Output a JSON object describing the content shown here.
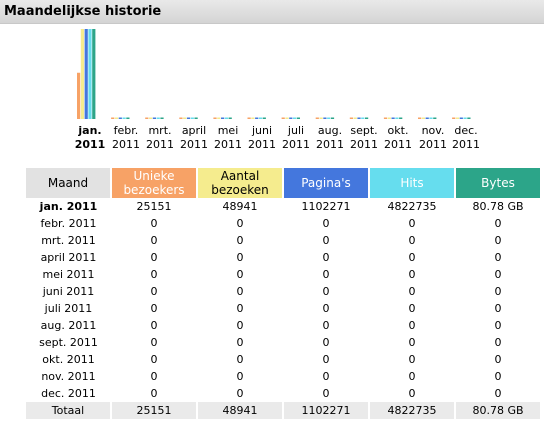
{
  "section_title": "Maandelijkse historie",
  "chart_months": [
    {
      "label1": "jan.",
      "label2": "2011",
      "bold": true
    },
    {
      "label1": "febr.",
      "label2": "2011",
      "bold": false
    },
    {
      "label1": "mrt.",
      "label2": "2011",
      "bold": false
    },
    {
      "label1": "april",
      "label2": "2011",
      "bold": false
    },
    {
      "label1": "mei",
      "label2": "2011",
      "bold": false
    },
    {
      "label1": "juni",
      "label2": "2011",
      "bold": false
    },
    {
      "label1": "juli",
      "label2": "2011",
      "bold": false
    },
    {
      "label1": "aug.",
      "label2": "2011",
      "bold": false
    },
    {
      "label1": "sept.",
      "label2": "2011",
      "bold": false
    },
    {
      "label1": "okt.",
      "label2": "2011",
      "bold": false
    },
    {
      "label1": "nov.",
      "label2": "2011",
      "bold": false
    },
    {
      "label1": "dec.",
      "label2": "2011",
      "bold": false
    }
  ],
  "colors": {
    "unique": "#f7a266",
    "visits": "#f5ec8e",
    "pages": "#4477dd",
    "hits": "#66ddee",
    "bytes": "#2ca589"
  },
  "chart_data": {
    "type": "bar",
    "categories": [
      "jan. 2011",
      "febr. 2011",
      "mrt. 2011",
      "april 2011",
      "mei 2011",
      "juni 2011",
      "juli 2011",
      "aug. 2011",
      "sept. 2011",
      "okt. 2011",
      "nov. 2011",
      "dec. 2011"
    ],
    "series": [
      {
        "name": "Unieke bezoekers",
        "values": [
          25151,
          0,
          0,
          0,
          0,
          0,
          0,
          0,
          0,
          0,
          0,
          0
        ]
      },
      {
        "name": "Aantal bezoeken",
        "values": [
          48941,
          0,
          0,
          0,
          0,
          0,
          0,
          0,
          0,
          0,
          0,
          0
        ]
      },
      {
        "name": "Pagina's",
        "values": [
          1102271,
          0,
          0,
          0,
          0,
          0,
          0,
          0,
          0,
          0,
          0,
          0
        ]
      },
      {
        "name": "Hits",
        "values": [
          4822735,
          0,
          0,
          0,
          0,
          0,
          0,
          0,
          0,
          0,
          0,
          0
        ]
      },
      {
        "name": "Bytes",
        "values": [
          80.78,
          0,
          0,
          0,
          0,
          0,
          0,
          0,
          0,
          0,
          0,
          0
        ]
      }
    ]
  },
  "table": {
    "headers": [
      "Maand",
      "Unieke bezoekers",
      "Aantal bezoeken",
      "Pagina's",
      "Hits",
      "Bytes"
    ],
    "header_lines": {
      "maand": "Maand",
      "unique1": "Unieke",
      "unique2": "bezoekers",
      "visits1": "Aantal",
      "visits2": "bezoeken",
      "pages": "Pagina's",
      "hits": "Hits",
      "bytes": "Bytes"
    },
    "rows": [
      [
        "jan. 2011",
        "25151",
        "48941",
        "1102271",
        "4822735",
        "80.78 GB"
      ],
      [
        "febr. 2011",
        "0",
        "0",
        "0",
        "0",
        "0"
      ],
      [
        "mrt. 2011",
        "0",
        "0",
        "0",
        "0",
        "0"
      ],
      [
        "april 2011",
        "0",
        "0",
        "0",
        "0",
        "0"
      ],
      [
        "mei 2011",
        "0",
        "0",
        "0",
        "0",
        "0"
      ],
      [
        "juni 2011",
        "0",
        "0",
        "0",
        "0",
        "0"
      ],
      [
        "juli 2011",
        "0",
        "0",
        "0",
        "0",
        "0"
      ],
      [
        "aug. 2011",
        "0",
        "0",
        "0",
        "0",
        "0"
      ],
      [
        "sept. 2011",
        "0",
        "0",
        "0",
        "0",
        "0"
      ],
      [
        "okt. 2011",
        "0",
        "0",
        "0",
        "0",
        "0"
      ],
      [
        "nov. 2011",
        "0",
        "0",
        "0",
        "0",
        "0"
      ],
      [
        "dec. 2011",
        "0",
        "0",
        "0",
        "0",
        "0"
      ]
    ],
    "totals": [
      "Totaal",
      "25151",
      "48941",
      "1102271",
      "4822735",
      "80.78 GB"
    ]
  }
}
